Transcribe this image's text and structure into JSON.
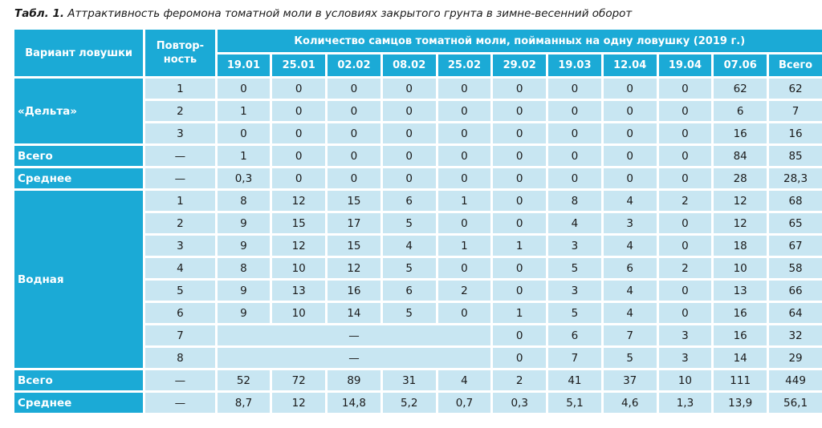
{
  "caption": {
    "prefix": "Табл. 1.",
    "text": "Аттрактивность феромона томатной моли в условиях закрытого грунта в зимне-весенний оборот"
  },
  "header": {
    "variant": "Вариант ловушки",
    "repeat": "Повтор-ность",
    "group": "Количество самцов томатной моли, пойманных на одну ловушку (2019 г.)",
    "dates": [
      "19.01",
      "25.01",
      "02.02",
      "08.02",
      "25.02",
      "29.02",
      "19.03",
      "12.04",
      "19.04",
      "07.06"
    ],
    "total": "Всего"
  },
  "groups": {
    "delta": "«Дельта»",
    "water": "Водная",
    "total": "Всего",
    "mean": "Среднее"
  },
  "dash": "—",
  "delta_rows": [
    {
      "rep": "1",
      "vals": [
        "0",
        "0",
        "0",
        "0",
        "0",
        "0",
        "0",
        "0",
        "0",
        "62",
        "62"
      ]
    },
    {
      "rep": "2",
      "vals": [
        "1",
        "0",
        "0",
        "0",
        "0",
        "0",
        "0",
        "0",
        "0",
        "6",
        "7"
      ]
    },
    {
      "rep": "3",
      "vals": [
        "0",
        "0",
        "0",
        "0",
        "0",
        "0",
        "0",
        "0",
        "0",
        "16",
        "16"
      ]
    }
  ],
  "delta_total": [
    "1",
    "0",
    "0",
    "0",
    "0",
    "0",
    "0",
    "0",
    "0",
    "84",
    "85"
  ],
  "delta_mean": [
    "0,3",
    "0",
    "0",
    "0",
    "0",
    "0",
    "0",
    "0",
    "0",
    "28",
    "28,3"
  ],
  "water_rows": [
    {
      "rep": "1",
      "vals": [
        "8",
        "12",
        "15",
        "6",
        "1",
        "0",
        "8",
        "4",
        "2",
        "12",
        "68"
      ]
    },
    {
      "rep": "2",
      "vals": [
        "9",
        "15",
        "17",
        "5",
        "0",
        "0",
        "4",
        "3",
        "0",
        "12",
        "65"
      ]
    },
    {
      "rep": "3",
      "vals": [
        "9",
        "12",
        "15",
        "4",
        "1",
        "1",
        "3",
        "4",
        "0",
        "18",
        "67"
      ]
    },
    {
      "rep": "4",
      "vals": [
        "8",
        "10",
        "12",
        "5",
        "0",
        "0",
        "5",
        "6",
        "2",
        "10",
        "58"
      ]
    },
    {
      "rep": "5",
      "vals": [
        "9",
        "13",
        "16",
        "6",
        "2",
        "0",
        "3",
        "4",
        "0",
        "13",
        "66"
      ]
    },
    {
      "rep": "6",
      "vals": [
        "9",
        "10",
        "14",
        "5",
        "0",
        "1",
        "5",
        "4",
        "0",
        "16",
        "64"
      ]
    }
  ],
  "water_partial": [
    {
      "rep": "7",
      "vals": [
        "0",
        "6",
        "7",
        "3",
        "16",
        "32"
      ]
    },
    {
      "rep": "8",
      "vals": [
        "0",
        "7",
        "5",
        "3",
        "14",
        "29"
      ]
    }
  ],
  "water_total": [
    "52",
    "72",
    "89",
    "31",
    "4",
    "2",
    "41",
    "37",
    "10",
    "111",
    "449"
  ],
  "water_mean": [
    "8,7",
    "12",
    "14,8",
    "5,2",
    "0,7",
    "0,3",
    "5,1",
    "4,6",
    "1,3",
    "13,9",
    "56,1"
  ]
}
